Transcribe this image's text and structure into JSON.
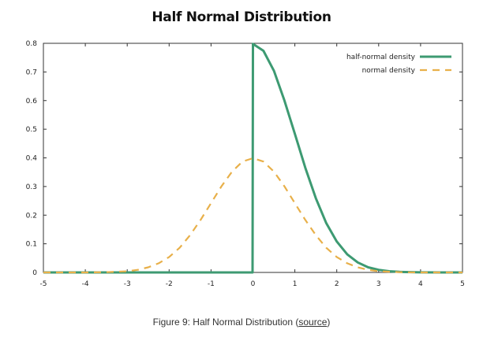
{
  "chart_data": {
    "type": "line",
    "title": "Half Normal Distribution",
    "xlabel": "",
    "ylabel": "",
    "xlim": [
      -5,
      5
    ],
    "ylim": [
      0,
      0.8
    ],
    "xticks": [
      "-5",
      "-4",
      "-3",
      "-2",
      "-1",
      "0",
      "1",
      "2",
      "3",
      "4",
      "5"
    ],
    "yticks": [
      "0",
      "0.1",
      "0.2",
      "0.3",
      "0.4",
      "0.5",
      "0.6",
      "0.7",
      "0.8"
    ],
    "grid": false,
    "legend_position": "top-right",
    "series": [
      {
        "name": "half-normal density",
        "color": "#3d9a72",
        "style": "solid",
        "x": [
          -5,
          -4,
          -3,
          -2,
          -1,
          -0.01,
          0,
          0.25,
          0.5,
          0.75,
          1,
          1.25,
          1.5,
          1.75,
          2,
          2.25,
          2.5,
          2.75,
          3,
          3.25,
          3.5,
          4,
          4.5,
          5
        ],
        "y": [
          0,
          0,
          0,
          0,
          0,
          0,
          0.798,
          0.774,
          0.704,
          0.601,
          0.484,
          0.365,
          0.259,
          0.172,
          0.108,
          0.063,
          0.035,
          0.018,
          0.009,
          0.004,
          0.002,
          0.0003,
          3e-05,
          0
        ]
      },
      {
        "name": "normal density",
        "color": "#e8b04a",
        "style": "dashed",
        "x": [
          -5,
          -4.5,
          -4,
          -3.5,
          -3,
          -2.75,
          -2.5,
          -2.25,
          -2,
          -1.75,
          -1.5,
          -1.25,
          -1,
          -0.75,
          -0.5,
          -0.25,
          0,
          0.25,
          0.5,
          0.75,
          1,
          1.25,
          1.5,
          1.75,
          2,
          2.25,
          2.5,
          2.75,
          3,
          3.5,
          4,
          4.5,
          5
        ],
        "y": [
          0,
          2e-05,
          0.0001,
          0.0009,
          0.004,
          0.009,
          0.018,
          0.032,
          0.054,
          0.086,
          0.13,
          0.183,
          0.242,
          0.301,
          0.352,
          0.387,
          0.399,
          0.387,
          0.352,
          0.301,
          0.242,
          0.183,
          0.13,
          0.086,
          0.054,
          0.032,
          0.018,
          0.009,
          0.004,
          0.0009,
          0.0001,
          2e-05,
          0
        ]
      }
    ],
    "reference_line": {
      "x": 0,
      "color": "#777777",
      "style": "dotted"
    }
  },
  "caption": {
    "prefix": "Figure 9: Half Normal Distribution (",
    "link_text": "source",
    "suffix": ")"
  }
}
